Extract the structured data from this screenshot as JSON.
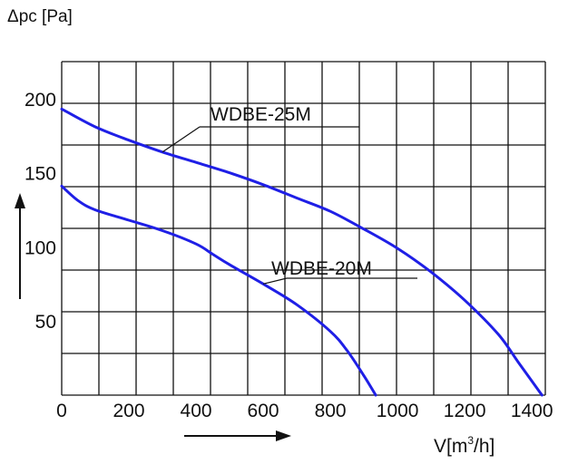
{
  "chart_data": {
    "type": "line",
    "ylabel": "Δpc [Pa]",
    "xlabel_main": "V[m",
    "xlabel_sup": "3",
    "xlabel_tail": "/h]",
    "xlim": [
      0,
      1440
    ],
    "ylim": [
      0,
      225
    ],
    "x_ticks": [
      0,
      200,
      400,
      600,
      800,
      1000,
      1200,
      1400
    ],
    "x_tick_labels": [
      "0",
      "200",
      "400",
      "600",
      "800",
      "1000",
      "1200",
      "1400"
    ],
    "y_ticks": [
      50,
      100,
      150,
      200
    ],
    "y_tick_labels": [
      "50",
      "100",
      "150",
      "200"
    ],
    "grid": true,
    "curve_color": "#1f1fe6",
    "series": [
      {
        "name": "WDBE-25M",
        "points": [
          [
            0,
            193
          ],
          [
            100,
            181
          ],
          [
            200,
            172
          ],
          [
            300,
            164
          ],
          [
            400,
            157
          ],
          [
            500,
            150
          ],
          [
            600,
            142
          ],
          [
            700,
            133
          ],
          [
            800,
            124
          ],
          [
            900,
            112
          ],
          [
            1000,
            99
          ],
          [
            1100,
            83
          ],
          [
            1200,
            64
          ],
          [
            1300,
            41
          ],
          [
            1360,
            22
          ],
          [
            1430,
            0
          ]
        ]
      },
      {
        "name": "WDBE-20M",
        "points": [
          [
            0,
            141
          ],
          [
            50,
            131
          ],
          [
            100,
            125
          ],
          [
            200,
            118
          ],
          [
            300,
            111
          ],
          [
            400,
            102
          ],
          [
            450,
            95
          ],
          [
            500,
            88
          ],
          [
            600,
            75
          ],
          [
            700,
            61
          ],
          [
            800,
            43
          ],
          [
            850,
            30
          ],
          [
            900,
            13
          ],
          [
            935,
            0
          ]
        ]
      }
    ]
  }
}
